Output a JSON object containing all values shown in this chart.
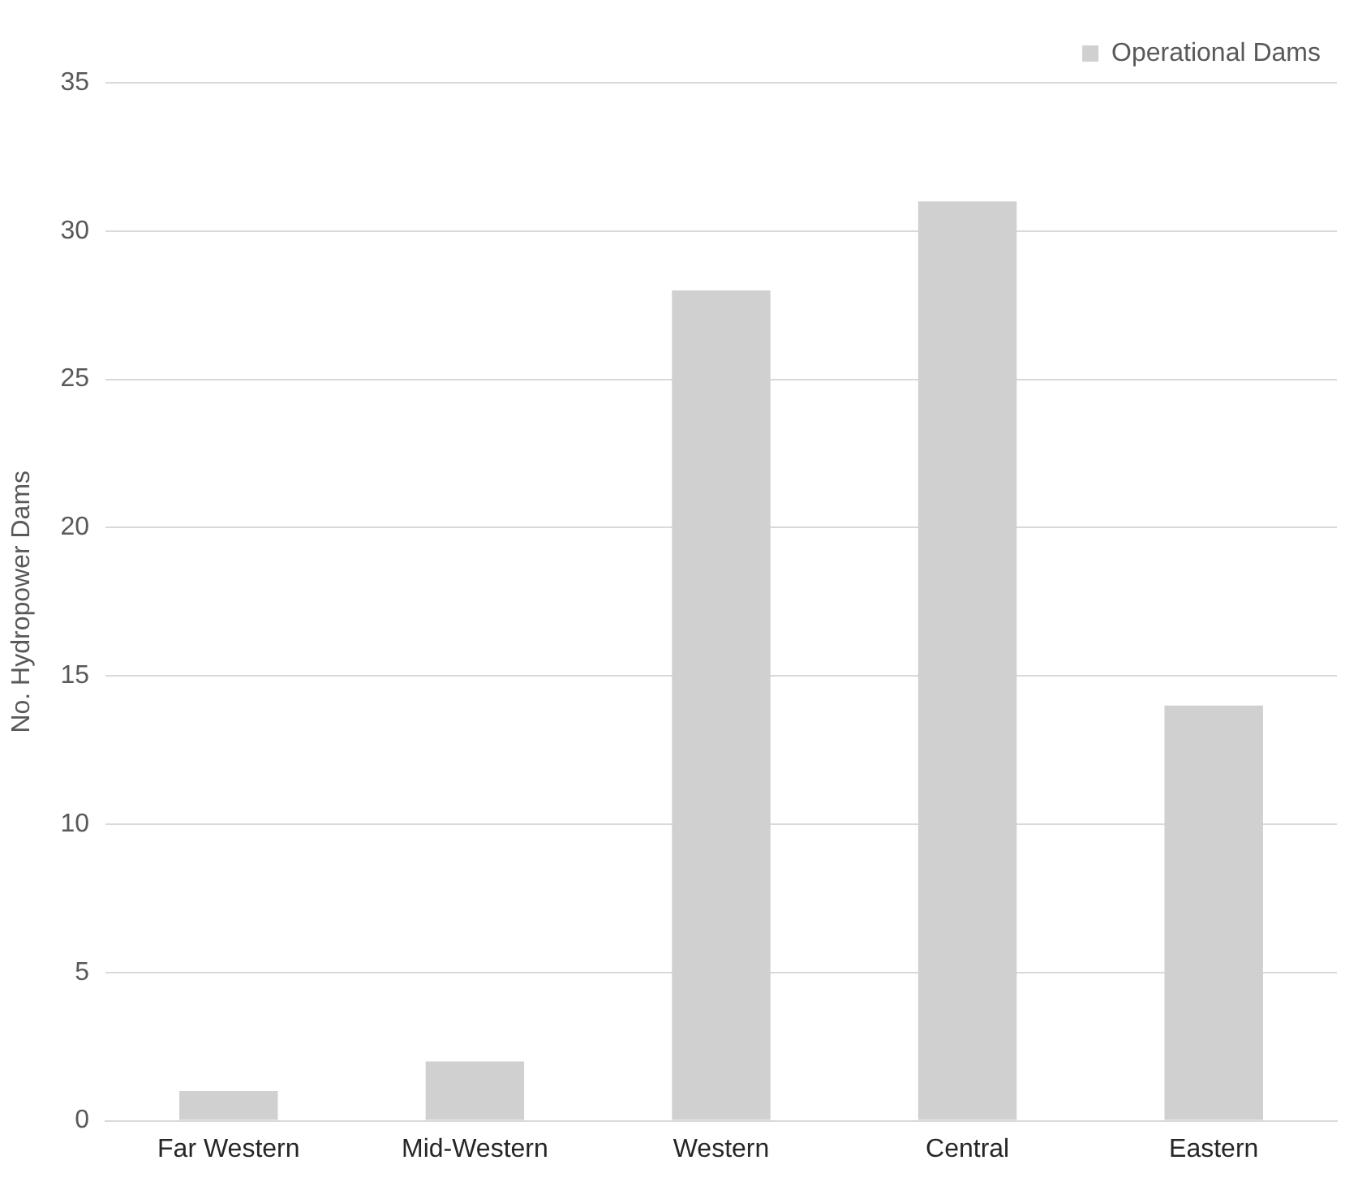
{
  "chart_data": {
    "type": "bar",
    "ylabel": "No. Hydropower Dams",
    "categories": [
      "Far Western",
      "Mid-Western",
      "Western",
      "Central",
      "Eastern"
    ],
    "series": [
      {
        "name": "Operational Dams",
        "color": "#d0d0d0",
        "values": [
          1,
          2,
          28,
          31,
          14
        ]
      }
    ],
    "ylim": [
      0,
      35
    ],
    "yticks": [
      0,
      5,
      10,
      15,
      20,
      25,
      30,
      35
    ],
    "grid": "y",
    "legend": "top right"
  }
}
